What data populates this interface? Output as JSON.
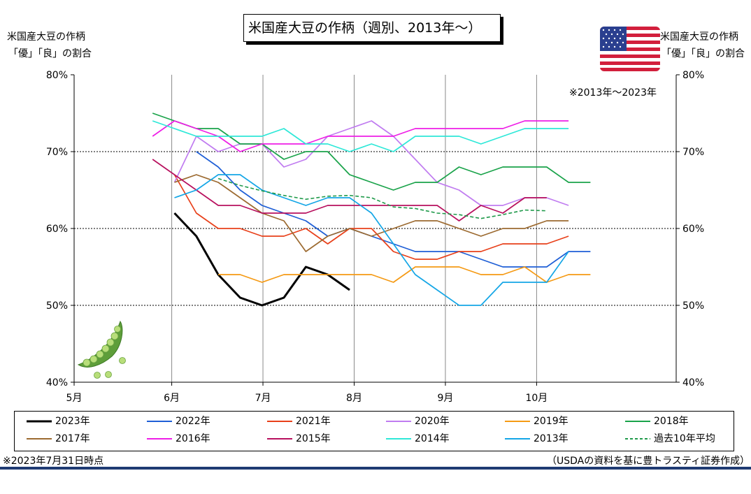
{
  "page": {
    "title": "米国産大豆の作柄（週別、2013年～）",
    "left_axis_title_line1": "米国産大豆の作柄",
    "left_axis_title_line2": "「優」「良」の割合",
    "right_axis_title_line1": "米国産大豆の作柄",
    "right_axis_title_line2": "「優」「良」の割合",
    "note_top_right": "※2013年～2023年",
    "footnote_left": "※2023年7月31日時点",
    "footnote_right": "（USDAの資料を基に豊トラスティ証券作成）",
    "flag_icon": "us-flag-icon",
    "decor_icon": "soybean-pod-icon"
  },
  "chart_data": {
    "type": "line",
    "title": "米国産大豆の作柄（週別、2013年～）",
    "ylabel": "米国産大豆の作柄「優」「良」の割合",
    "ylim": [
      40,
      80
    ],
    "yticks": [
      "40%",
      "50%",
      "60%",
      "70%",
      "80%"
    ],
    "xlim": [
      1,
      34
    ],
    "xticks": [
      {
        "label": "5月",
        "x": 1
      },
      {
        "label": "6月",
        "x": 6.35
      },
      {
        "label": "7月",
        "x": 11.35
      },
      {
        "label": "8月",
        "x": 16.35
      },
      {
        "label": "9月",
        "x": 21.35
      },
      {
        "label": "10月",
        "x": 26.35
      }
    ],
    "grid": {
      "vertical": true,
      "horizontal_dotted": [
        50,
        60,
        70
      ]
    },
    "legend_position": "bottom",
    "series": [
      {
        "name": "2023年",
        "color": "#000000",
        "width": 3,
        "dash": "",
        "points": [
          [
            6.5,
            62
          ],
          [
            7.7,
            59
          ],
          [
            8.9,
            54
          ],
          [
            10.1,
            51
          ],
          [
            11.3,
            50
          ],
          [
            12.5,
            51
          ],
          [
            13.7,
            55
          ],
          [
            14.9,
            54
          ],
          [
            16.1,
            52
          ]
        ]
      },
      {
        "name": "2022年",
        "color": "#1f5fd6",
        "width": 1.7,
        "dash": "",
        "points": [
          [
            7.7,
            70
          ],
          [
            8.9,
            68
          ],
          [
            10.1,
            65
          ],
          [
            11.3,
            63
          ],
          [
            12.5,
            62
          ],
          [
            13.7,
            61
          ],
          [
            14.9,
            59
          ],
          [
            16.1,
            60
          ],
          [
            17.3,
            59
          ],
          [
            18.5,
            58
          ],
          [
            19.7,
            57
          ],
          [
            20.9,
            57
          ],
          [
            22.1,
            57
          ],
          [
            23.3,
            56
          ],
          [
            24.5,
            55
          ],
          [
            25.7,
            55
          ],
          [
            26.9,
            55
          ],
          [
            28.1,
            57
          ],
          [
            29.3,
            57
          ]
        ]
      },
      {
        "name": "2021年",
        "color": "#e8401a",
        "width": 1.7,
        "dash": "",
        "points": [
          [
            6.5,
            67
          ],
          [
            7.7,
            62
          ],
          [
            8.9,
            60
          ],
          [
            10.1,
            60
          ],
          [
            11.3,
            59
          ],
          [
            12.5,
            59
          ],
          [
            13.7,
            60
          ],
          [
            14.9,
            58
          ],
          [
            16.1,
            60
          ],
          [
            17.3,
            60
          ],
          [
            18.5,
            57
          ],
          [
            19.7,
            56
          ],
          [
            20.9,
            56
          ],
          [
            22.1,
            57
          ],
          [
            23.3,
            57
          ],
          [
            24.5,
            58
          ],
          [
            25.7,
            58
          ],
          [
            26.9,
            58
          ],
          [
            28.1,
            59
          ]
        ]
      },
      {
        "name": "2020年",
        "color": "#c07cf0",
        "width": 1.7,
        "dash": "",
        "points": [
          [
            6.5,
            66
          ],
          [
            7.7,
            72
          ],
          [
            8.9,
            70
          ],
          [
            10.1,
            71
          ],
          [
            11.3,
            71
          ],
          [
            12.5,
            68
          ],
          [
            13.7,
            69
          ],
          [
            14.9,
            72
          ],
          [
            16.1,
            73
          ],
          [
            17.3,
            74
          ],
          [
            18.5,
            72
          ],
          [
            19.7,
            69
          ],
          [
            20.9,
            66
          ],
          [
            22.1,
            65
          ],
          [
            23.3,
            63
          ],
          [
            24.5,
            63
          ],
          [
            25.7,
            64
          ],
          [
            26.9,
            64
          ],
          [
            28.1,
            63
          ]
        ]
      },
      {
        "name": "2019年",
        "color": "#f59a14",
        "width": 1.7,
        "dash": "",
        "points": [
          [
            8.9,
            54
          ],
          [
            10.1,
            54
          ],
          [
            11.3,
            53
          ],
          [
            12.5,
            54
          ],
          [
            13.7,
            54
          ],
          [
            14.9,
            54
          ],
          [
            16.1,
            54
          ],
          [
            17.3,
            54
          ],
          [
            18.5,
            53
          ],
          [
            19.7,
            55
          ],
          [
            20.9,
            55
          ],
          [
            22.1,
            55
          ],
          [
            23.3,
            54
          ],
          [
            24.5,
            54
          ],
          [
            25.7,
            55
          ],
          [
            26.9,
            53
          ],
          [
            28.1,
            54
          ],
          [
            29.3,
            54
          ]
        ]
      },
      {
        "name": "2018年",
        "color": "#1aa34a",
        "width": 1.7,
        "dash": "",
        "points": [
          [
            5.3,
            75
          ],
          [
            6.5,
            74
          ],
          [
            7.7,
            73
          ],
          [
            8.9,
            73
          ],
          [
            10.1,
            71
          ],
          [
            11.3,
            71
          ],
          [
            12.5,
            69
          ],
          [
            13.7,
            70
          ],
          [
            14.9,
            70
          ],
          [
            16.1,
            67
          ],
          [
            17.3,
            66
          ],
          [
            18.5,
            65
          ],
          [
            19.7,
            66
          ],
          [
            20.9,
            66
          ],
          [
            22.1,
            68
          ],
          [
            23.3,
            67
          ],
          [
            24.5,
            68
          ],
          [
            25.7,
            68
          ],
          [
            26.9,
            68
          ],
          [
            28.1,
            66
          ],
          [
            29.3,
            66
          ]
        ]
      },
      {
        "name": "2017年",
        "color": "#9c6a30",
        "width": 1.7,
        "dash": "",
        "points": [
          [
            6.5,
            66
          ],
          [
            7.7,
            67
          ],
          [
            8.9,
            66
          ],
          [
            10.1,
            64
          ],
          [
            11.3,
            62
          ],
          [
            12.5,
            61
          ],
          [
            13.7,
            57
          ],
          [
            14.9,
            59
          ],
          [
            16.1,
            60
          ],
          [
            17.3,
            59
          ],
          [
            18.5,
            60
          ],
          [
            19.7,
            61
          ],
          [
            20.9,
            61
          ],
          [
            22.1,
            60
          ],
          [
            23.3,
            59
          ],
          [
            24.5,
            60
          ],
          [
            25.7,
            60
          ],
          [
            26.9,
            61
          ],
          [
            28.1,
            61
          ]
        ]
      },
      {
        "name": "2016年",
        "color": "#ee1ee6",
        "width": 1.7,
        "dash": "",
        "points": [
          [
            5.3,
            72
          ],
          [
            6.5,
            74
          ],
          [
            7.7,
            73
          ],
          [
            8.9,
            72
          ],
          [
            10.1,
            70
          ],
          [
            11.3,
            71
          ],
          [
            12.5,
            71
          ],
          [
            13.7,
            71
          ],
          [
            14.9,
            72
          ],
          [
            16.1,
            72
          ],
          [
            17.3,
            72
          ],
          [
            18.5,
            72
          ],
          [
            19.7,
            73
          ],
          [
            20.9,
            73
          ],
          [
            22.1,
            73
          ],
          [
            23.3,
            73
          ],
          [
            24.5,
            73
          ],
          [
            25.7,
            74
          ],
          [
            26.9,
            74
          ],
          [
            28.1,
            74
          ]
        ]
      },
      {
        "name": "2015年",
        "color": "#b8105e",
        "width": 1.7,
        "dash": "",
        "points": [
          [
            5.3,
            69
          ],
          [
            6.5,
            67
          ],
          [
            7.7,
            65
          ],
          [
            8.9,
            63
          ],
          [
            10.1,
            63
          ],
          [
            11.3,
            62
          ],
          [
            12.5,
            62
          ],
          [
            13.7,
            62
          ],
          [
            14.9,
            63
          ],
          [
            16.1,
            63
          ],
          [
            17.3,
            63
          ],
          [
            18.5,
            63
          ],
          [
            19.7,
            63
          ],
          [
            20.9,
            63
          ],
          [
            22.1,
            61
          ],
          [
            23.3,
            63
          ],
          [
            24.5,
            62
          ],
          [
            25.7,
            64
          ],
          [
            26.9,
            64
          ]
        ]
      },
      {
        "name": "2014年",
        "color": "#2ee8d8",
        "width": 1.7,
        "dash": "",
        "points": [
          [
            5.3,
            74
          ],
          [
            6.5,
            73
          ],
          [
            7.7,
            72
          ],
          [
            8.9,
            72
          ],
          [
            10.1,
            72
          ],
          [
            11.3,
            72
          ],
          [
            12.5,
            73
          ],
          [
            13.7,
            71
          ],
          [
            14.9,
            71
          ],
          [
            16.1,
            70
          ],
          [
            17.3,
            71
          ],
          [
            18.5,
            70
          ],
          [
            19.7,
            72
          ],
          [
            20.9,
            72
          ],
          [
            22.1,
            72
          ],
          [
            23.3,
            71
          ],
          [
            24.5,
            72
          ],
          [
            25.7,
            73
          ],
          [
            26.9,
            73
          ],
          [
            28.1,
            73
          ]
        ]
      },
      {
        "name": "2013年",
        "color": "#14a6e6",
        "width": 1.7,
        "dash": "",
        "points": [
          [
            6.5,
            64
          ],
          [
            7.7,
            65
          ],
          [
            8.9,
            67
          ],
          [
            10.1,
            67
          ],
          [
            11.3,
            65
          ],
          [
            12.5,
            64
          ],
          [
            13.7,
            63
          ],
          [
            14.9,
            64
          ],
          [
            16.1,
            64
          ],
          [
            17.3,
            62
          ],
          [
            18.5,
            58
          ],
          [
            19.7,
            54
          ],
          [
            20.9,
            52
          ],
          [
            22.1,
            50
          ],
          [
            23.3,
            50
          ],
          [
            24.5,
            53
          ],
          [
            25.7,
            53
          ],
          [
            26.9,
            53
          ],
          [
            28.1,
            57
          ]
        ]
      },
      {
        "name": "過去10年平均",
        "color": "#1f9a4a",
        "width": 1.6,
        "dash": "5,3",
        "points": [
          [
            8.9,
            66.5
          ],
          [
            10.1,
            65.6
          ],
          [
            11.3,
            64.9
          ],
          [
            12.5,
            64.3
          ],
          [
            13.7,
            63.8
          ],
          [
            14.9,
            64.2
          ],
          [
            16.1,
            64.3
          ],
          [
            17.3,
            64.0
          ],
          [
            18.5,
            62.8
          ],
          [
            19.7,
            62.6
          ],
          [
            20.9,
            62.0
          ],
          [
            22.1,
            61.8
          ],
          [
            23.3,
            61.3
          ],
          [
            24.5,
            61.8
          ],
          [
            25.7,
            62.4
          ],
          [
            26.9,
            62.3
          ]
        ]
      }
    ]
  }
}
